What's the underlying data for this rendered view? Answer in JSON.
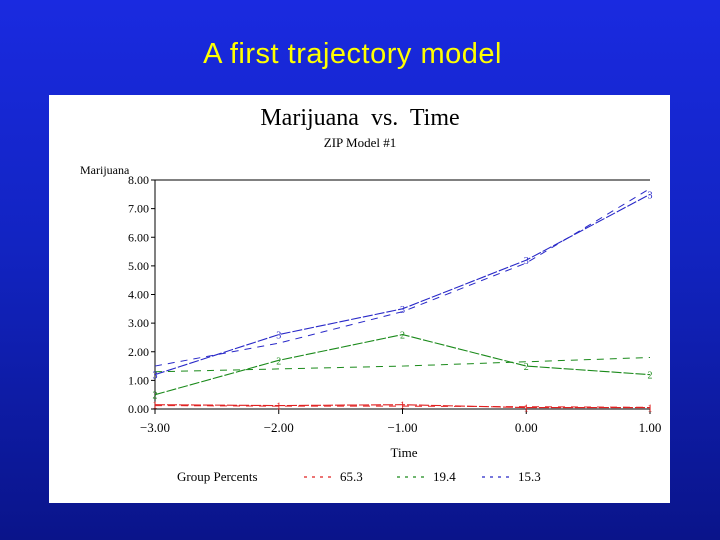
{
  "slide": {
    "title": "A first trajectory model"
  },
  "chart_data": {
    "type": "line",
    "title": "Marijuana  vs.  Time",
    "subtitle": "ZIP Model #1",
    "ylabel": "Marijuana",
    "xlabel": "Time",
    "ylim": [
      0,
      8
    ],
    "xlim": [
      -3,
      1
    ],
    "yticks": [
      "0.00",
      "1.00",
      "2.00",
      "3.00",
      "4.00",
      "5.00",
      "6.00",
      "7.00",
      "8.00"
    ],
    "xticks": [
      "−3.00",
      "−2.00",
      "−1.00",
      "0.00",
      "1.00"
    ],
    "x": [
      -3,
      -2,
      -1,
      0,
      1
    ],
    "legend_title": "Group Percents",
    "series": [
      {
        "name": "65.3",
        "marker": "1",
        "color": "#e02020",
        "observed": [
          0.15,
          0.12,
          0.15,
          0.05,
          0.05
        ],
        "predicted": [
          0.12,
          0.1,
          0.1,
          0.08,
          0.06
        ]
      },
      {
        "name": "19.4",
        "marker": "2",
        "color": "#1a8a1a",
        "observed": [
          0.5,
          1.7,
          2.6,
          1.5,
          1.2
        ],
        "predicted": [
          1.3,
          1.4,
          1.5,
          1.65,
          1.8
        ]
      },
      {
        "name": "15.3",
        "marker": "3",
        "color": "#2828c8",
        "observed": [
          1.2,
          2.6,
          3.5,
          5.2,
          7.5
        ],
        "predicted": [
          1.5,
          2.3,
          3.4,
          5.1,
          7.7
        ]
      }
    ]
  }
}
